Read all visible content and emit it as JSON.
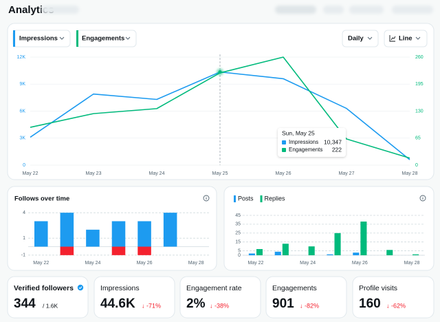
{
  "header": {
    "title": "Analytics"
  },
  "controls": {
    "metrics": [
      "Impressions",
      "Engagements"
    ],
    "interval": "Daily",
    "style": "Line"
  },
  "chart_data": [
    {
      "type": "line",
      "categories": [
        "May 22",
        "May 23",
        "May 24",
        "May 25",
        "May 26",
        "May 27",
        "May 28"
      ],
      "series": [
        {
          "name": "Impressions",
          "color": "#1d9bf0",
          "values": [
            3100,
            7900,
            7300,
            10347,
            9600,
            6300,
            600
          ],
          "value_labels": [
            null,
            null,
            null,
            "10,347",
            null,
            null,
            null
          ]
        },
        {
          "name": "Engagements",
          "color": "#00ba7c",
          "axis": "y2",
          "values": [
            91,
            124,
            136,
            222,
            260,
            63,
            17
          ]
        }
      ],
      "ylim": [
        0,
        12000
      ],
      "yticks": [
        0,
        {
          "value": 3000,
          "label": "3K"
        },
        {
          "value": 6000,
          "label": "6K"
        },
        {
          "value": 9000,
          "label": "9K"
        },
        {
          "value": 12000,
          "label": "12K"
        }
      ],
      "y2lim": [
        0,
        260
      ],
      "y2ticks": [
        0,
        65,
        130,
        195,
        260
      ],
      "grid": true,
      "tooltip": {
        "title": "Sun, May 25"
      }
    },
    {
      "type": "bar",
      "stacked": true,
      "title": "Follows over time",
      "categories": [
        "May 22",
        null,
        "May 24",
        null,
        "May 26",
        null,
        "May 28"
      ],
      "series": [
        {
          "color": "#1d9bf0",
          "values": [
            3,
            4,
            2,
            3,
            3,
            4,
            0
          ]
        },
        {
          "color": "#f4212e",
          "values": [
            0,
            -1,
            0,
            -1,
            -1,
            0,
            0
          ]
        }
      ],
      "ylim": [
        -1.5,
        4.5
      ],
      "yticks": [
        -1,
        1,
        4
      ],
      "grid": true
    },
    {
      "type": "bar",
      "stacked": false,
      "categories": [
        "May 22",
        null,
        "May 24",
        null,
        "May 26",
        null,
        "May 28"
      ],
      "series": [
        {
          "name": "Posts",
          "color": "#1d9bf0",
          "values": [
            2,
            4,
            0,
            1,
            3,
            0,
            0
          ]
        },
        {
          "name": "Replies",
          "color": "#00ba7c",
          "values": [
            7,
            13,
            10,
            25,
            38,
            6,
            1
          ]
        }
      ],
      "ylim": [
        0,
        45
      ],
      "yticks": [
        0,
        5,
        15,
        25,
        35,
        45
      ],
      "grid": true
    }
  ],
  "stats": [
    {
      "label": "Verified followers",
      "value": "344",
      "total": "/ 1.6K"
    },
    {
      "label": "Impressions",
      "value": "44.6K",
      "change": "↓ -71%"
    },
    {
      "label": "Engagement rate",
      "value": "2%",
      "change": "↓ -38%"
    },
    {
      "label": "Engagements",
      "value": "901",
      "change": "↓ -82%"
    },
    {
      "label": "Profile visits",
      "value": "160",
      "change": "↓ -62%"
    }
  ]
}
